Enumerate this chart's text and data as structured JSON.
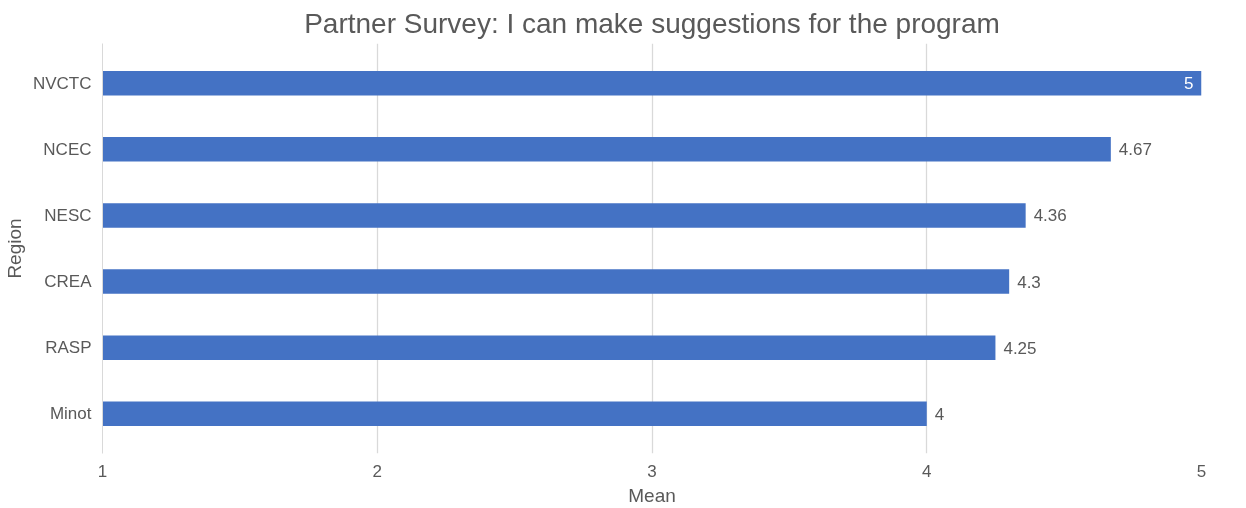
{
  "chart_data": {
    "type": "bar",
    "orientation": "horizontal",
    "title": "Partner Survey: I can make suggestions for the program",
    "xlabel": "Mean",
    "ylabel": "Region",
    "categories": [
      "NVCTC",
      "NCEC",
      "NESC",
      "CREA",
      "RASP",
      "Minot"
    ],
    "values": [
      5,
      4.67,
      4.36,
      4.3,
      4.25,
      4
    ],
    "color": "#4472c4",
    "xlim": [
      1,
      5
    ],
    "xticks": [
      1,
      2,
      3,
      4,
      5
    ],
    "grid": "x",
    "data_labels": true
  }
}
